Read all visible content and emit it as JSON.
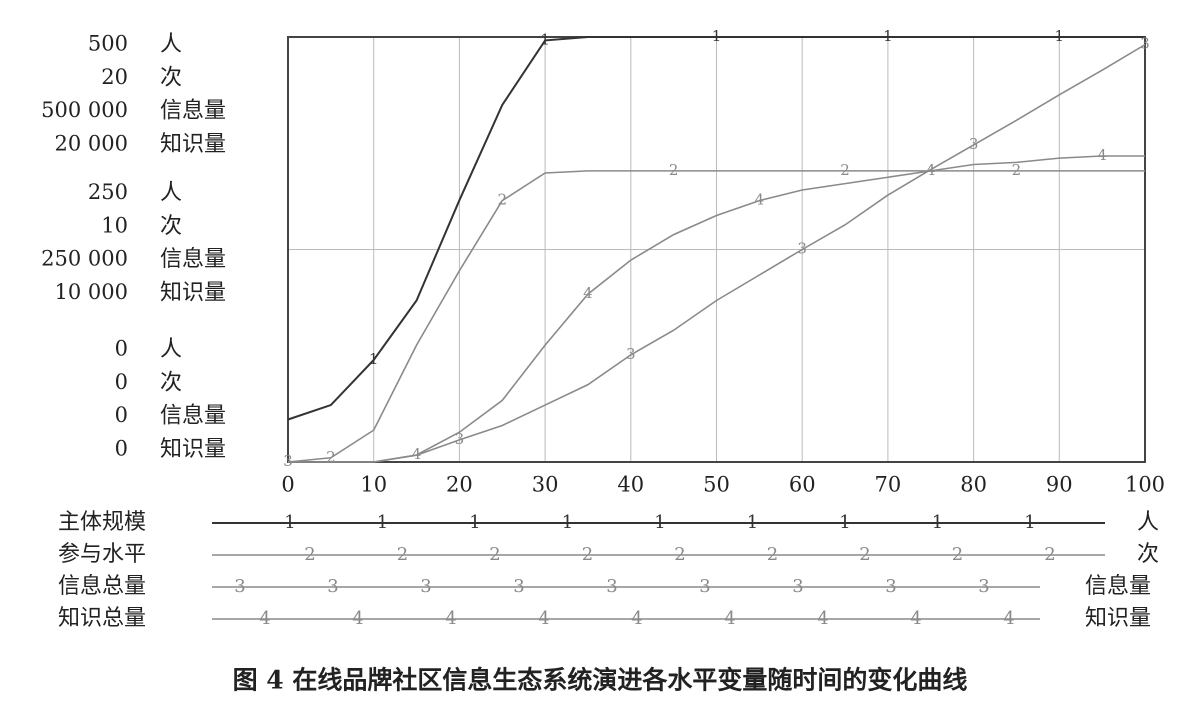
{
  "chart_data": {
    "type": "line",
    "title": "图 4   在线品牌社区信息生态系统演进各水平变量随时间的变化曲线",
    "x": [
      0,
      5,
      10,
      15,
      20,
      25,
      30,
      35,
      40,
      45,
      50,
      55,
      60,
      65,
      70,
      75,
      80,
      85,
      90,
      95,
      100
    ],
    "xlim": [
      0,
      100
    ],
    "xticks": [
      0,
      10,
      20,
      30,
      40,
      50,
      60,
      70,
      80,
      90,
      100
    ],
    "grid": true,
    "series": [
      {
        "name": "主体规模",
        "marker": "1",
        "unit": "人",
        "color": "#333333",
        "ylim": [
          0,
          500
        ],
        "yticks": [
          0,
          250,
          500
        ],
        "values": [
          50,
          67,
          120,
          190,
          308,
          420,
          496,
          500,
          500,
          500,
          500,
          500,
          500,
          500,
          500,
          500,
          500,
          500,
          500,
          500,
          500
        ]
      },
      {
        "name": "参与水平",
        "marker": "2",
        "unit": "次",
        "color": "#8a8a8a",
        "ylim": [
          0,
          20
        ],
        "yticks": [
          0,
          10,
          20
        ],
        "values": [
          0,
          0.2,
          1.5,
          5.5,
          9.0,
          12.3,
          13.6,
          13.7,
          13.7,
          13.7,
          13.7,
          13.7,
          13.7,
          13.7,
          13.7,
          13.7,
          13.7,
          13.7,
          13.7,
          13.7,
          13.7
        ]
      },
      {
        "name": "信息总量",
        "marker": "3",
        "unit": "信息量",
        "color": "#8a8a8a",
        "ylim": [
          0,
          500000
        ],
        "yticks": [
          0,
          {
            "value": 250000,
            "label": "250 000"
          },
          {
            "value": 500000,
            "label": "500 000"
          }
        ],
        "values": [
          0,
          0,
          0,
          8000,
          26000,
          43000,
          67000,
          91000,
          126000,
          155000,
          190000,
          220000,
          250000,
          279000,
          314000,
          344000,
          373000,
          402000,
          432000,
          461000,
          491000
        ]
      },
      {
        "name": "知识总量",
        "marker": "4",
        "unit": "知识量",
        "color": "#8a8a8a",
        "ylim": [
          0,
          20000
        ],
        "yticks": [
          0,
          {
            "value": 10000,
            "label": "10 000"
          },
          {
            "value": 20000,
            "label": "20 000"
          }
        ],
        "values": [
          0,
          0,
          0,
          330,
          1400,
          2900,
          5500,
          7900,
          9500,
          10700,
          11600,
          12300,
          12800,
          13100,
          13400,
          13700,
          14000,
          14100,
          14300,
          14400,
          14400
        ]
      }
    ]
  }
}
